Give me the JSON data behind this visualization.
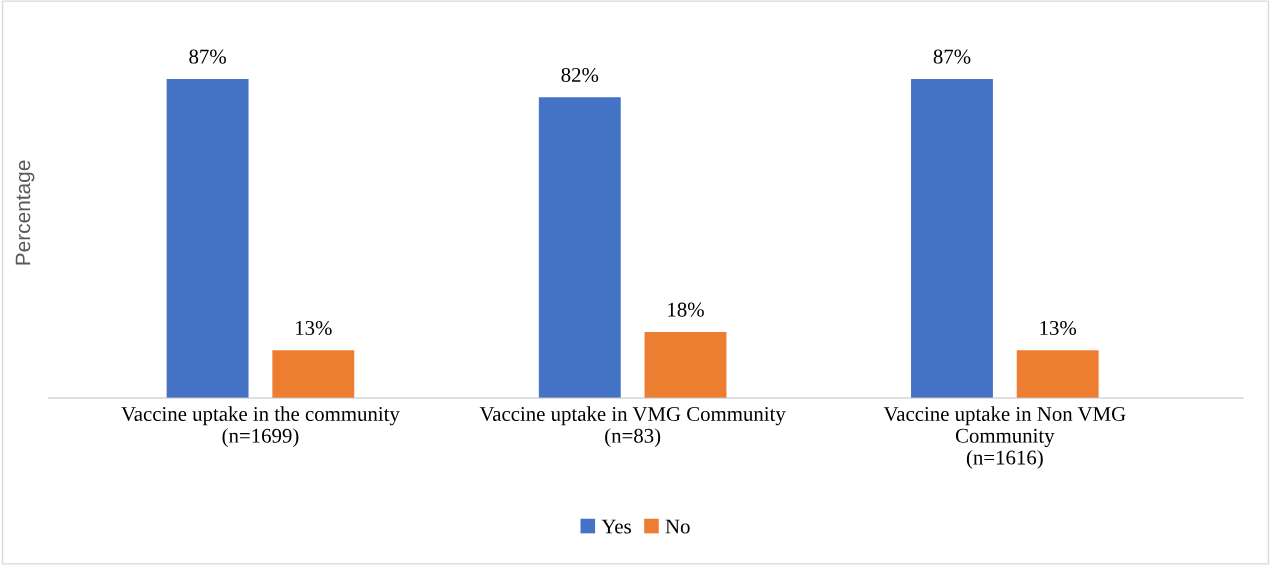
{
  "chart_data": {
    "type": "bar",
    "ylabel": "Percentage",
    "categories": [
      "Vaccine uptake in the community\n(n=1699)",
      "Vaccine uptake in VMG Community\n(n=83)",
      "Vaccine uptake in Non VMG\nCommunity\n(n=1616)"
    ],
    "series": [
      {
        "name": "Yes",
        "color": "#4472c4",
        "values": [
          87,
          82,
          87
        ],
        "value_labels": [
          "87%",
          "82%",
          "87%"
        ]
      },
      {
        "name": "No",
        "color": "#ed7d31",
        "values": [
          13,
          18,
          13
        ],
        "value_labels": [
          "13%",
          "18%",
          "13%"
        ]
      }
    ],
    "grid": false,
    "legend": "bottom"
  }
}
